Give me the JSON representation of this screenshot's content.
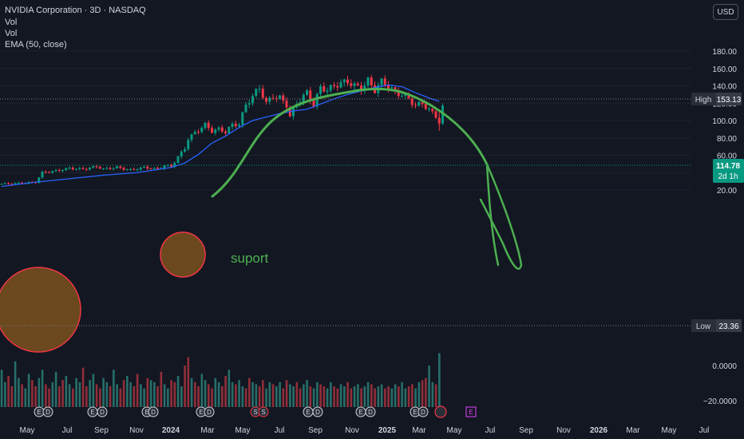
{
  "header": {
    "title": "NVIDIA Corporation · 3D · NASDAQ",
    "indicators": [
      "Vol",
      "Vol",
      "EMA (50, close)"
    ]
  },
  "currency_button": "USD",
  "colors": {
    "background": "#131722",
    "up": "#089981",
    "down": "#f23645",
    "ema": "#2962ff",
    "drawing": "#4caf50",
    "circle_fill": "#8a5a1e",
    "circle_stroke": "#f23645",
    "grid": "#1e222d",
    "axis_text": "#d1d4dc"
  },
  "chart_data": {
    "type": "candlestick",
    "x_ticks": [
      "May",
      "Jul",
      "Sep",
      "Nov",
      "2024",
      "Mar",
      "May",
      "Jul",
      "Sep",
      "Nov",
      "2025",
      "Mar",
      "May",
      "Jul",
      "Sep",
      "Nov",
      "2026",
      "Mar",
      "May",
      "Jul"
    ],
    "y_ticks": [
      "180.00",
      "160.00",
      "140.00",
      "120.00",
      "100.00",
      "80.00",
      "60.00",
      "40.00",
      "20.00"
    ],
    "volume_ticks": [
      "0.0000",
      "−20.0000"
    ],
    "ylim": [
      18,
      188
    ],
    "price_labels": {
      "high": {
        "label": "High",
        "value": "153.13"
      },
      "current": {
        "value": "114.78",
        "countdown": "2d 1h"
      },
      "low": {
        "label": "Low",
        "value": "23.36"
      }
    },
    "annotation": "suport",
    "price_path": [
      [
        0,
        27
      ],
      [
        6,
        28
      ],
      [
        10,
        29
      ],
      [
        12,
        40
      ],
      [
        16,
        42
      ],
      [
        20,
        45
      ],
      [
        24,
        44
      ],
      [
        28,
        47
      ],
      [
        30,
        44
      ],
      [
        34,
        46
      ],
      [
        38,
        43
      ],
      [
        42,
        46
      ],
      [
        46,
        44
      ],
      [
        48,
        48
      ],
      [
        50,
        47
      ],
      [
        52,
        58
      ],
      [
        54,
        68
      ],
      [
        55,
        79
      ],
      [
        57,
        86
      ],
      [
        60,
        95
      ],
      [
        62,
        88
      ],
      [
        64,
        90
      ],
      [
        66,
        87
      ],
      [
        68,
        95
      ],
      [
        70,
        96
      ],
      [
        72,
        118
      ],
      [
        74,
        128
      ],
      [
        76,
        138
      ],
      [
        78,
        120
      ],
      [
        80,
        128
      ],
      [
        82,
        126
      ],
      [
        84,
        118
      ],
      [
        85,
        105
      ],
      [
        87,
        120
      ],
      [
        90,
        132
      ],
      [
        92,
        118
      ],
      [
        94,
        138
      ],
      [
        96,
        135
      ],
      [
        98,
        140
      ],
      [
        100,
        143
      ],
      [
        102,
        145
      ],
      [
        104,
        140
      ],
      [
        106,
        137
      ],
      [
        108,
        146
      ],
      [
        110,
        135
      ],
      [
        112,
        145
      ],
      [
        114,
        140
      ],
      [
        116,
        132
      ],
      [
        118,
        130
      ],
      [
        120,
        125
      ],
      [
        122,
        117
      ],
      [
        124,
        120
      ],
      [
        126,
        112
      ],
      [
        128,
        105
      ],
      [
        129,
        98
      ],
      [
        130,
        114.78
      ]
    ],
    "ema": [
      [
        0,
        24
      ],
      [
        10,
        29
      ],
      [
        20,
        33
      ],
      [
        30,
        37
      ],
      [
        40,
        40
      ],
      [
        50,
        46
      ],
      [
        54,
        51
      ],
      [
        58,
        61
      ],
      [
        62,
        74
      ],
      [
        66,
        82
      ],
      [
        70,
        92
      ],
      [
        74,
        100
      ],
      [
        78,
        104
      ],
      [
        82,
        108
      ],
      [
        86,
        111
      ],
      [
        90,
        113
      ],
      [
        94,
        119
      ],
      [
        98,
        125
      ],
      [
        102,
        130
      ],
      [
        106,
        134
      ],
      [
        110,
        138
      ],
      [
        114,
        141
      ],
      [
        118,
        139
      ],
      [
        122,
        132
      ],
      [
        126,
        126
      ],
      [
        129,
        122
      ]
    ],
    "volume": [
      18,
      12,
      15,
      10,
      22,
      14,
      11,
      9,
      16,
      13,
      10,
      14,
      18,
      11,
      9,
      12,
      17,
      10,
      13,
      15,
      11,
      9,
      14,
      12,
      19,
      10,
      13,
      16,
      11,
      9,
      14,
      12,
      10,
      18,
      11,
      9,
      13,
      15,
      12,
      10,
      16,
      11,
      9,
      14,
      13,
      12,
      10,
      17,
      11,
      9,
      13,
      12,
      15,
      10,
      20,
      24,
      14,
      12,
      10,
      16,
      13,
      11,
      9,
      14,
      12,
      10,
      15,
      18,
      12,
      11,
      13,
      10,
      9,
      14,
      12,
      11,
      10,
      13,
      9,
      12,
      11,
      10,
      12,
      9,
      13,
      11,
      10,
      12,
      9,
      11,
      13,
      10,
      9,
      12,
      11,
      10,
      9,
      12,
      10,
      9,
      11,
      10,
      12,
      9,
      10,
      11,
      9,
      10,
      12,
      11,
      9,
      10,
      11,
      9,
      10,
      9,
      11,
      10,
      12,
      9,
      10,
      11,
      9,
      12,
      13,
      14,
      20,
      12,
      11,
      26
    ]
  }
}
